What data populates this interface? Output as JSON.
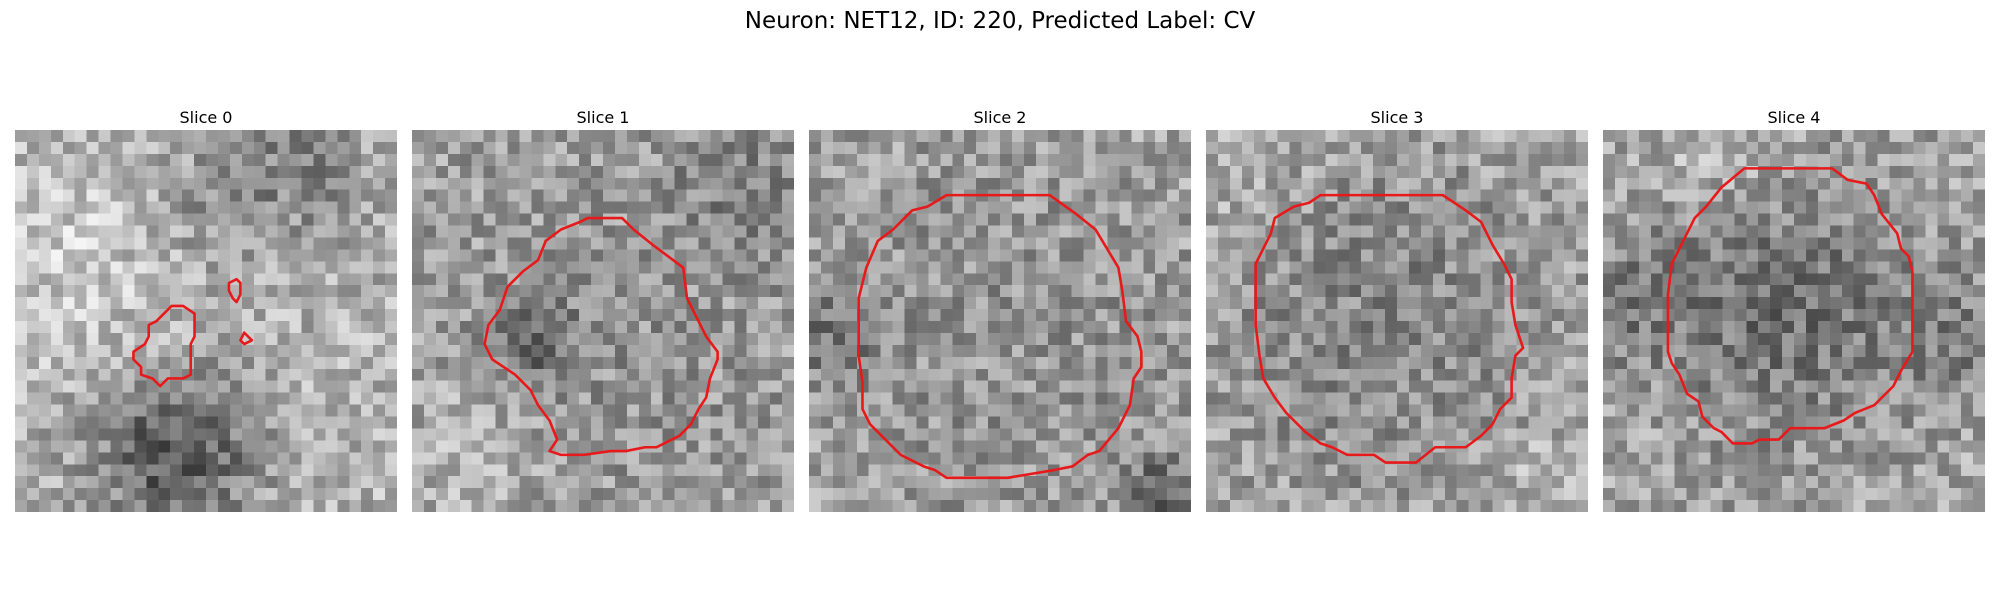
{
  "figure": {
    "title": "Neuron: NET12, ID: 220, Predicted Label: CV"
  },
  "colors": {
    "contour": "#e8191a",
    "background": "#ffffff"
  },
  "image": {
    "colormap": "gray",
    "grid_size": 32
  },
  "slices": [
    {
      "title": "Slice 0",
      "contours": [
        [
          [
            0.41,
            0.45
          ],
          [
            0.44,
            0.45
          ],
          [
            0.47,
            0.47
          ],
          [
            0.47,
            0.53
          ],
          [
            0.46,
            0.55
          ],
          [
            0.46,
            0.63
          ],
          [
            0.44,
            0.64
          ],
          [
            0.4,
            0.64
          ],
          [
            0.38,
            0.66
          ],
          [
            0.36,
            0.64
          ],
          [
            0.33,
            0.63
          ],
          [
            0.33,
            0.61
          ],
          [
            0.31,
            0.59
          ],
          [
            0.31,
            0.57
          ],
          [
            0.34,
            0.55
          ],
          [
            0.35,
            0.53
          ],
          [
            0.35,
            0.5
          ],
          [
            0.37,
            0.49
          ]
        ],
        [
          [
            0.58,
            0.38
          ],
          [
            0.59,
            0.39
          ],
          [
            0.59,
            0.42
          ],
          [
            0.58,
            0.44
          ],
          [
            0.57,
            0.43
          ],
          [
            0.56,
            0.41
          ],
          [
            0.56,
            0.39
          ]
        ],
        [
          [
            0.6,
            0.52
          ],
          [
            0.62,
            0.54
          ],
          [
            0.6,
            0.55
          ],
          [
            0.59,
            0.54
          ]
        ]
      ]
    },
    {
      "title": "Slice 1",
      "contours": [
        [
          [
            0.46,
            0.22
          ],
          [
            0.55,
            0.22
          ],
          [
            0.58,
            0.25
          ],
          [
            0.63,
            0.29
          ],
          [
            0.71,
            0.35
          ],
          [
            0.72,
            0.43
          ],
          [
            0.75,
            0.49
          ],
          [
            0.77,
            0.53
          ],
          [
            0.8,
            0.57
          ],
          [
            0.8,
            0.59
          ],
          [
            0.78,
            0.64
          ],
          [
            0.77,
            0.69
          ],
          [
            0.75,
            0.72
          ],
          [
            0.73,
            0.76
          ],
          [
            0.7,
            0.79
          ],
          [
            0.66,
            0.81
          ],
          [
            0.64,
            0.82
          ],
          [
            0.61,
            0.82
          ],
          [
            0.56,
            0.83
          ],
          [
            0.52,
            0.83
          ],
          [
            0.45,
            0.84
          ],
          [
            0.39,
            0.84
          ],
          [
            0.36,
            0.83
          ],
          [
            0.38,
            0.8
          ],
          [
            0.36,
            0.75
          ],
          [
            0.33,
            0.71
          ],
          [
            0.31,
            0.67
          ],
          [
            0.27,
            0.63
          ],
          [
            0.21,
            0.59
          ],
          [
            0.19,
            0.55
          ],
          [
            0.2,
            0.5
          ],
          [
            0.23,
            0.46
          ],
          [
            0.25,
            0.4
          ],
          [
            0.29,
            0.36
          ],
          [
            0.33,
            0.33
          ],
          [
            0.35,
            0.28
          ],
          [
            0.39,
            0.25
          ],
          [
            0.44,
            0.23
          ]
        ]
      ]
    },
    {
      "title": "Slice 2",
      "contours": [
        [
          [
            0.36,
            0.16
          ],
          [
            0.63,
            0.16
          ],
          [
            0.7,
            0.21
          ],
          [
            0.75,
            0.25
          ],
          [
            0.78,
            0.3
          ],
          [
            0.81,
            0.35
          ],
          [
            0.82,
            0.41
          ],
          [
            0.83,
            0.49
          ],
          [
            0.86,
            0.53
          ],
          [
            0.87,
            0.57
          ],
          [
            0.87,
            0.61
          ],
          [
            0.85,
            0.64
          ],
          [
            0.84,
            0.71
          ],
          [
            0.81,
            0.77
          ],
          [
            0.76,
            0.83
          ],
          [
            0.73,
            0.84
          ],
          [
            0.69,
            0.87
          ],
          [
            0.64,
            0.88
          ],
          [
            0.58,
            0.89
          ],
          [
            0.52,
            0.9
          ],
          [
            0.36,
            0.9
          ],
          [
            0.33,
            0.88
          ],
          [
            0.3,
            0.87
          ],
          [
            0.24,
            0.84
          ],
          [
            0.2,
            0.8
          ],
          [
            0.16,
            0.76
          ],
          [
            0.14,
            0.72
          ],
          [
            0.14,
            0.65
          ],
          [
            0.13,
            0.58
          ],
          [
            0.13,
            0.43
          ],
          [
            0.15,
            0.35
          ],
          [
            0.18,
            0.28
          ],
          [
            0.22,
            0.25
          ],
          [
            0.27,
            0.2
          ],
          [
            0.31,
            0.19
          ]
        ]
      ]
    },
    {
      "title": "Slice 3",
      "contours": [
        [
          [
            0.3,
            0.16
          ],
          [
            0.62,
            0.16
          ],
          [
            0.68,
            0.2
          ],
          [
            0.72,
            0.23
          ],
          [
            0.75,
            0.29
          ],
          [
            0.78,
            0.34
          ],
          [
            0.8,
            0.38
          ],
          [
            0.8,
            0.44
          ],
          [
            0.81,
            0.5
          ],
          [
            0.82,
            0.53
          ],
          [
            0.83,
            0.56
          ],
          [
            0.81,
            0.58
          ],
          [
            0.8,
            0.64
          ],
          [
            0.8,
            0.69
          ],
          [
            0.77,
            0.72
          ],
          [
            0.75,
            0.76
          ],
          [
            0.72,
            0.79
          ],
          [
            0.68,
            0.82
          ],
          [
            0.6,
            0.82
          ],
          [
            0.55,
            0.86
          ],
          [
            0.47,
            0.86
          ],
          [
            0.44,
            0.84
          ],
          [
            0.37,
            0.84
          ],
          [
            0.33,
            0.82
          ],
          [
            0.3,
            0.81
          ],
          [
            0.26,
            0.78
          ],
          [
            0.21,
            0.73
          ],
          [
            0.18,
            0.69
          ],
          [
            0.15,
            0.64
          ],
          [
            0.14,
            0.58
          ],
          [
            0.13,
            0.5
          ],
          [
            0.13,
            0.34
          ],
          [
            0.15,
            0.3
          ],
          [
            0.17,
            0.26
          ],
          [
            0.18,
            0.22
          ],
          [
            0.23,
            0.19
          ],
          [
            0.27,
            0.18
          ]
        ]
      ]
    },
    {
      "title": "Slice 4",
      "contours": [
        [
          [
            0.37,
            0.09
          ],
          [
            0.6,
            0.09
          ],
          [
            0.64,
            0.12
          ],
          [
            0.69,
            0.13
          ],
          [
            0.71,
            0.16
          ],
          [
            0.73,
            0.21
          ],
          [
            0.77,
            0.26
          ],
          [
            0.78,
            0.3
          ],
          [
            0.8,
            0.32
          ],
          [
            0.81,
            0.36
          ],
          [
            0.81,
            0.57
          ],
          [
            0.78,
            0.62
          ],
          [
            0.76,
            0.66
          ],
          [
            0.74,
            0.68
          ],
          [
            0.71,
            0.71
          ],
          [
            0.66,
            0.73
          ],
          [
            0.63,
            0.75
          ],
          [
            0.58,
            0.77
          ],
          [
            0.49,
            0.77
          ],
          [
            0.46,
            0.8
          ],
          [
            0.41,
            0.8
          ],
          [
            0.39,
            0.81
          ],
          [
            0.34,
            0.81
          ],
          [
            0.31,
            0.78
          ],
          [
            0.29,
            0.77
          ],
          [
            0.26,
            0.74
          ],
          [
            0.25,
            0.7
          ],
          [
            0.22,
            0.68
          ],
          [
            0.2,
            0.63
          ],
          [
            0.18,
            0.6
          ],
          [
            0.17,
            0.57
          ],
          [
            0.17,
            0.42
          ],
          [
            0.18,
            0.34
          ],
          [
            0.21,
            0.28
          ],
          [
            0.24,
            0.22
          ],
          [
            0.27,
            0.19
          ],
          [
            0.31,
            0.14
          ]
        ]
      ]
    }
  ]
}
